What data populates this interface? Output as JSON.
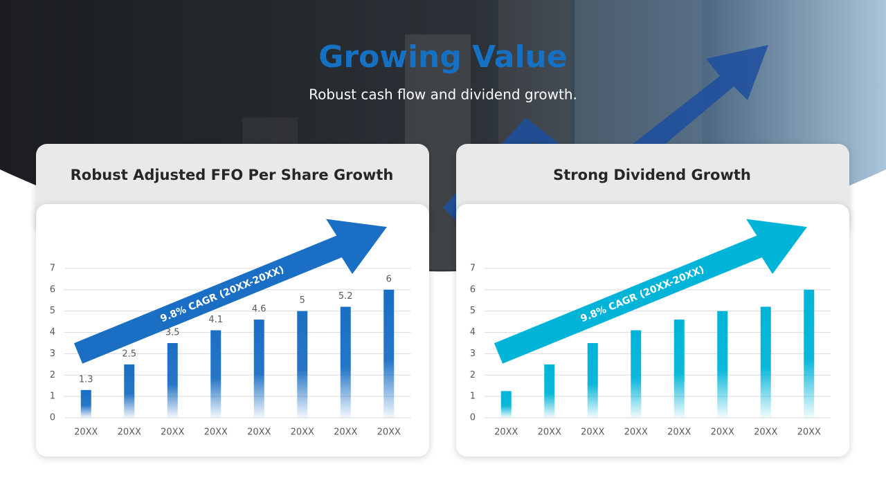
{
  "title": "Growing Value",
  "subtitle": "Robust cash flow and dividend growth.",
  "chart_data": [
    {
      "type": "bar",
      "title": "Robust Adjusted FFO Per Share Growth",
      "categories": [
        "20XX",
        "20XX",
        "20XX",
        "20XX",
        "20XX",
        "20XX",
        "20XX",
        "20XX"
      ],
      "values": [
        1.3,
        2.5,
        3.5,
        4.1,
        4.6,
        5,
        5.2,
        6
      ],
      "color": "#1a6fc4",
      "show_value_labels": true,
      "annotation": "9.8% CAGR (20XX-20XX)",
      "ylim": [
        0,
        7
      ],
      "yticks": [
        0,
        1,
        2,
        3,
        4,
        5,
        6,
        7
      ],
      "grid": true
    },
    {
      "type": "bar",
      "title": "Strong Dividend Growth",
      "categories": [
        "20XX",
        "20XX",
        "20XX",
        "20XX",
        "20XX",
        "20XX",
        "20XX",
        "20XX"
      ],
      "values": [
        1.25,
        2.5,
        3.5,
        4.1,
        4.6,
        5,
        5.2,
        6
      ],
      "color": "#00b4d8",
      "show_value_labels": false,
      "annotation": "9.8% CAGR (20XX-20XX)",
      "ylim": [
        0,
        7
      ],
      "yticks": [
        0,
        1,
        2,
        3,
        4,
        5,
        6,
        7
      ],
      "grid": true
    }
  ]
}
